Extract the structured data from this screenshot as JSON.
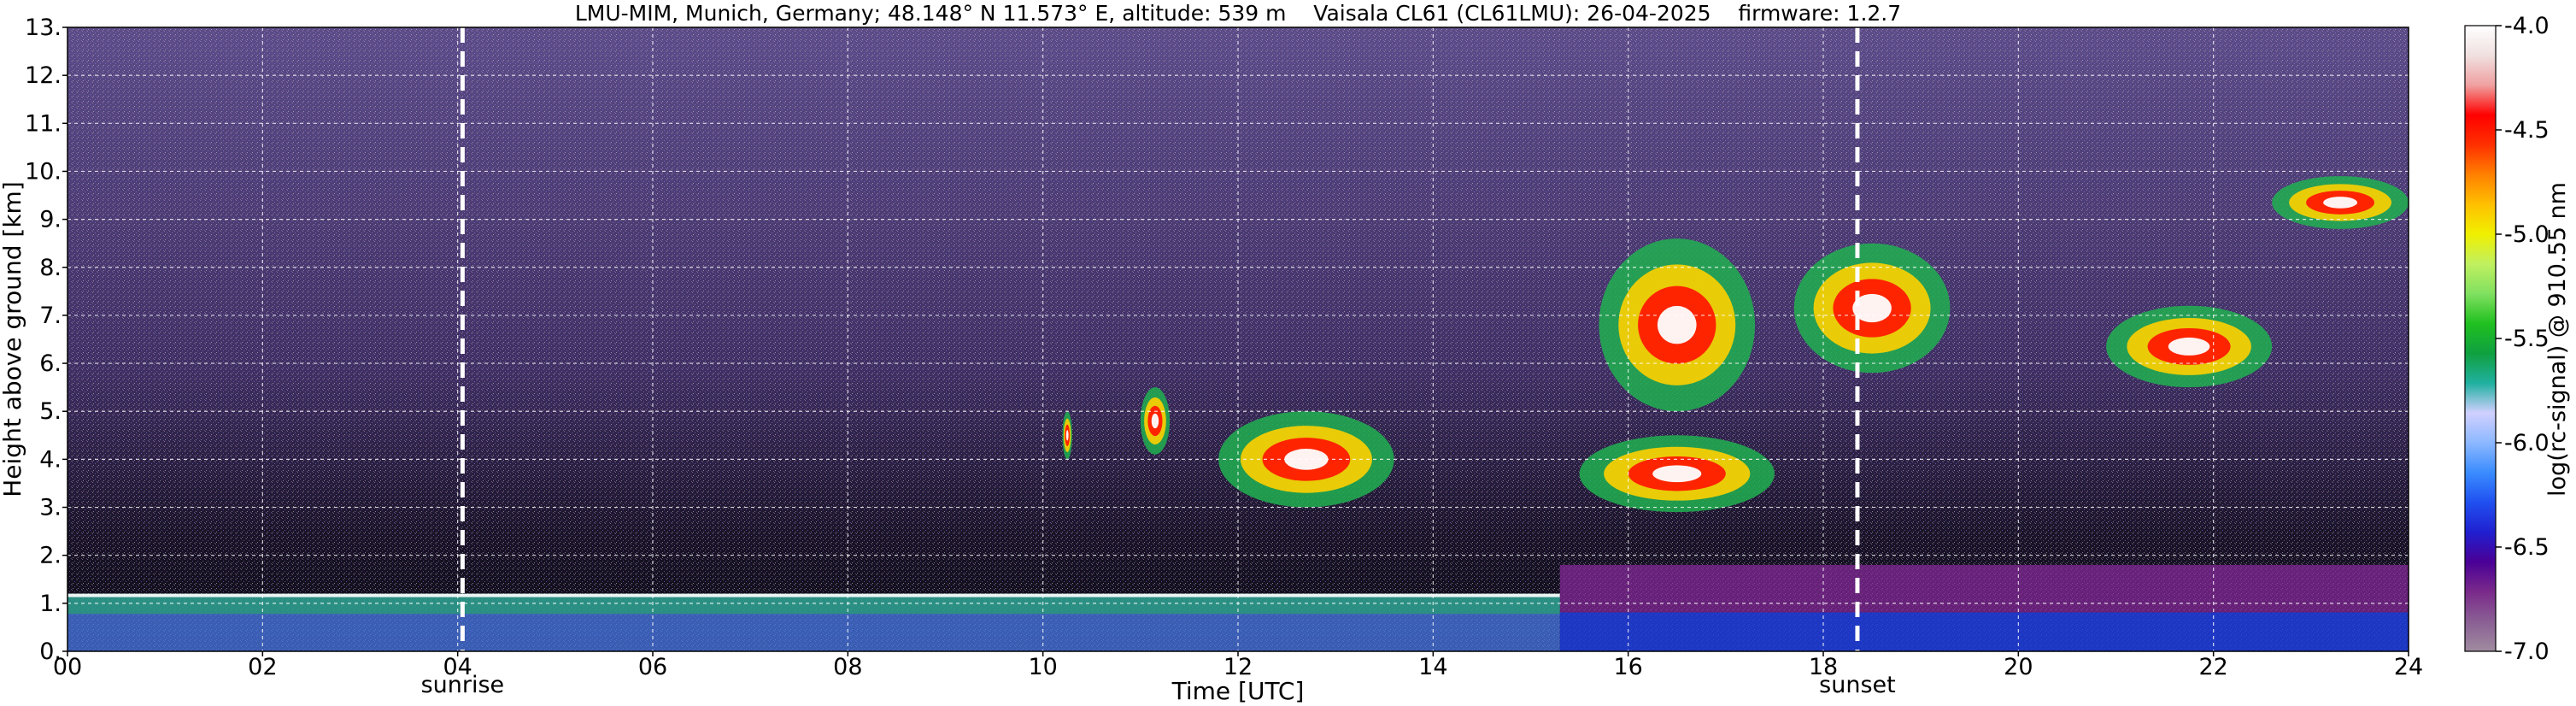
{
  "chart_data": {
    "type": "heatmap",
    "title": "LMU-MIM, Munich, Germany; 48.148° N 11.573° E, altitude: 539 m    Vaisala CL61 (CL61LMU): 26-04-2025    firmware: 1.2.7",
    "xlabel": "Time [UTC]",
    "ylabel": "Height above ground [km]",
    "xlim": [
      0,
      24
    ],
    "ylim": [
      0,
      13
    ],
    "x_tick_labels": [
      "00",
      "02",
      "04",
      "06",
      "08",
      "10",
      "12",
      "14",
      "16",
      "18",
      "20",
      "22",
      "24"
    ],
    "y_tick_labels": [
      "0.",
      "1.",
      "2.",
      "3.",
      "4.",
      "5.",
      "6.",
      "7.",
      "8.",
      "9.",
      "10.",
      "11.",
      "12.",
      "13."
    ],
    "grid": true,
    "event_markers": [
      {
        "label": "sunrise",
        "time_h": 4.05
      },
      {
        "label": "sunset",
        "time_h": 18.35
      }
    ],
    "colorbar": {
      "label": "log(rc-signal) @ 910.55 nm",
      "range": [
        -7.0,
        -4.0
      ],
      "tick_labels": [
        "-7.0",
        "-6.5",
        "-6.0",
        "-5.5",
        "-5.0",
        "-4.5",
        "-4.0"
      ],
      "colors": [
        "#a08ca0",
        "#8a5f94",
        "#7a2a8a",
        "#4a0096",
        "#2020d0",
        "#2050f0",
        "#3a8cff",
        "#8cb8ff",
        "#d0d0ff",
        "#20b0a0",
        "#10a040",
        "#20c020",
        "#80e060",
        "#c0f060",
        "#f0f000",
        "#ffc000",
        "#ff8000",
        "#ff3000",
        "#ff0000",
        "#f0a0a0",
        "#f0e0e0",
        "#ffffff"
      ]
    },
    "features": [
      {
        "kind": "background-noise",
        "time_h": [
          0,
          24
        ],
        "height_km": [
          0,
          13
        ]
      },
      {
        "kind": "boundary-layer",
        "time_h": [
          0,
          15.3
        ],
        "height_km": [
          0,
          1.2
        ]
      },
      {
        "kind": "aerosol-layer",
        "time_h": [
          15.3,
          24
        ],
        "height_km": [
          0,
          1.8
        ]
      },
      {
        "kind": "cloud",
        "time_h": [
          10.2,
          10.3
        ],
        "height_km": [
          4.0,
          5.0
        ]
      },
      {
        "kind": "cloud",
        "time_h": [
          11.0,
          11.3
        ],
        "height_km": [
          4.1,
          5.5
        ]
      },
      {
        "kind": "cloud",
        "time_h": [
          11.8,
          13.6
        ],
        "height_km": [
          3.0,
          5.0
        ]
      },
      {
        "kind": "cloud",
        "time_h": [
          15.5,
          17.5
        ],
        "height_km": [
          2.9,
          4.5
        ]
      },
      {
        "kind": "cloud",
        "time_h": [
          15.7,
          17.3
        ],
        "height_km": [
          5.0,
          8.6
        ]
      },
      {
        "kind": "cloud",
        "time_h": [
          17.7,
          19.3
        ],
        "height_km": [
          5.8,
          8.5
        ]
      },
      {
        "kind": "cloud",
        "time_h": [
          20.9,
          22.6
        ],
        "height_km": [
          5.5,
          7.2
        ]
      },
      {
        "kind": "cloud",
        "time_h": [
          22.6,
          24.0
        ],
        "height_km": [
          8.8,
          9.9
        ]
      }
    ]
  }
}
